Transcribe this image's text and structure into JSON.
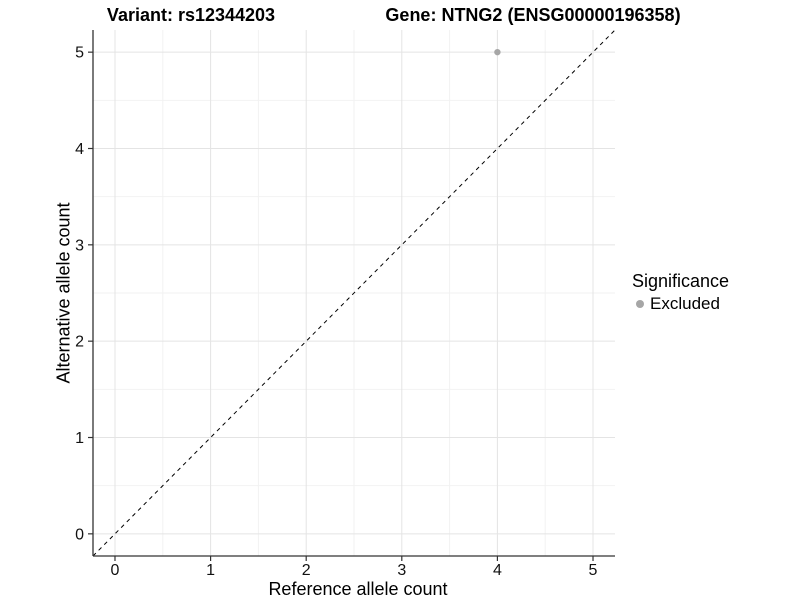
{
  "titles": {
    "variant": "Variant: rs12344203",
    "gene": "Gene: NTNG2 (ENSG00000196358)"
  },
  "legend": {
    "title": "Significance",
    "items": [
      {
        "label": "Excluded",
        "color": "#a6a6a6"
      }
    ]
  },
  "colors": {
    "point": "#a6a6a6",
    "grid_major": "#e4e4e4",
    "grid_minor": "#f2f2f2",
    "axis": "#333333",
    "tick": "#333333",
    "tick_label": "#111111",
    "identity_line": "#000000"
  },
  "chart_data": {
    "type": "scatter",
    "title": "Variant: rs12344203   Gene: NTNG2 (ENSG00000196358)",
    "xlabel": "Reference allele count",
    "ylabel": "Alternative allele count",
    "xlim": [
      -0.23,
      5.23
    ],
    "ylim": [
      -0.23,
      5.23
    ],
    "x_ticks": [
      0,
      1,
      2,
      3,
      4,
      5
    ],
    "y_ticks": [
      0,
      1,
      2,
      3,
      4,
      5
    ],
    "x_minor": [
      0.5,
      1.5,
      2.5,
      3.5,
      4.5
    ],
    "y_minor": [
      0.5,
      1.5,
      2.5,
      3.5,
      4.5
    ],
    "grid": true,
    "legend_position": "right",
    "series": [
      {
        "name": "Excluded",
        "color": "#a6a6a6"
      }
    ],
    "points": [
      {
        "x": 4,
        "y": 5,
        "series": "Excluded"
      }
    ],
    "reference_line": {
      "type": "identity",
      "style": "dashed",
      "slope": 1,
      "intercept": 0
    }
  }
}
